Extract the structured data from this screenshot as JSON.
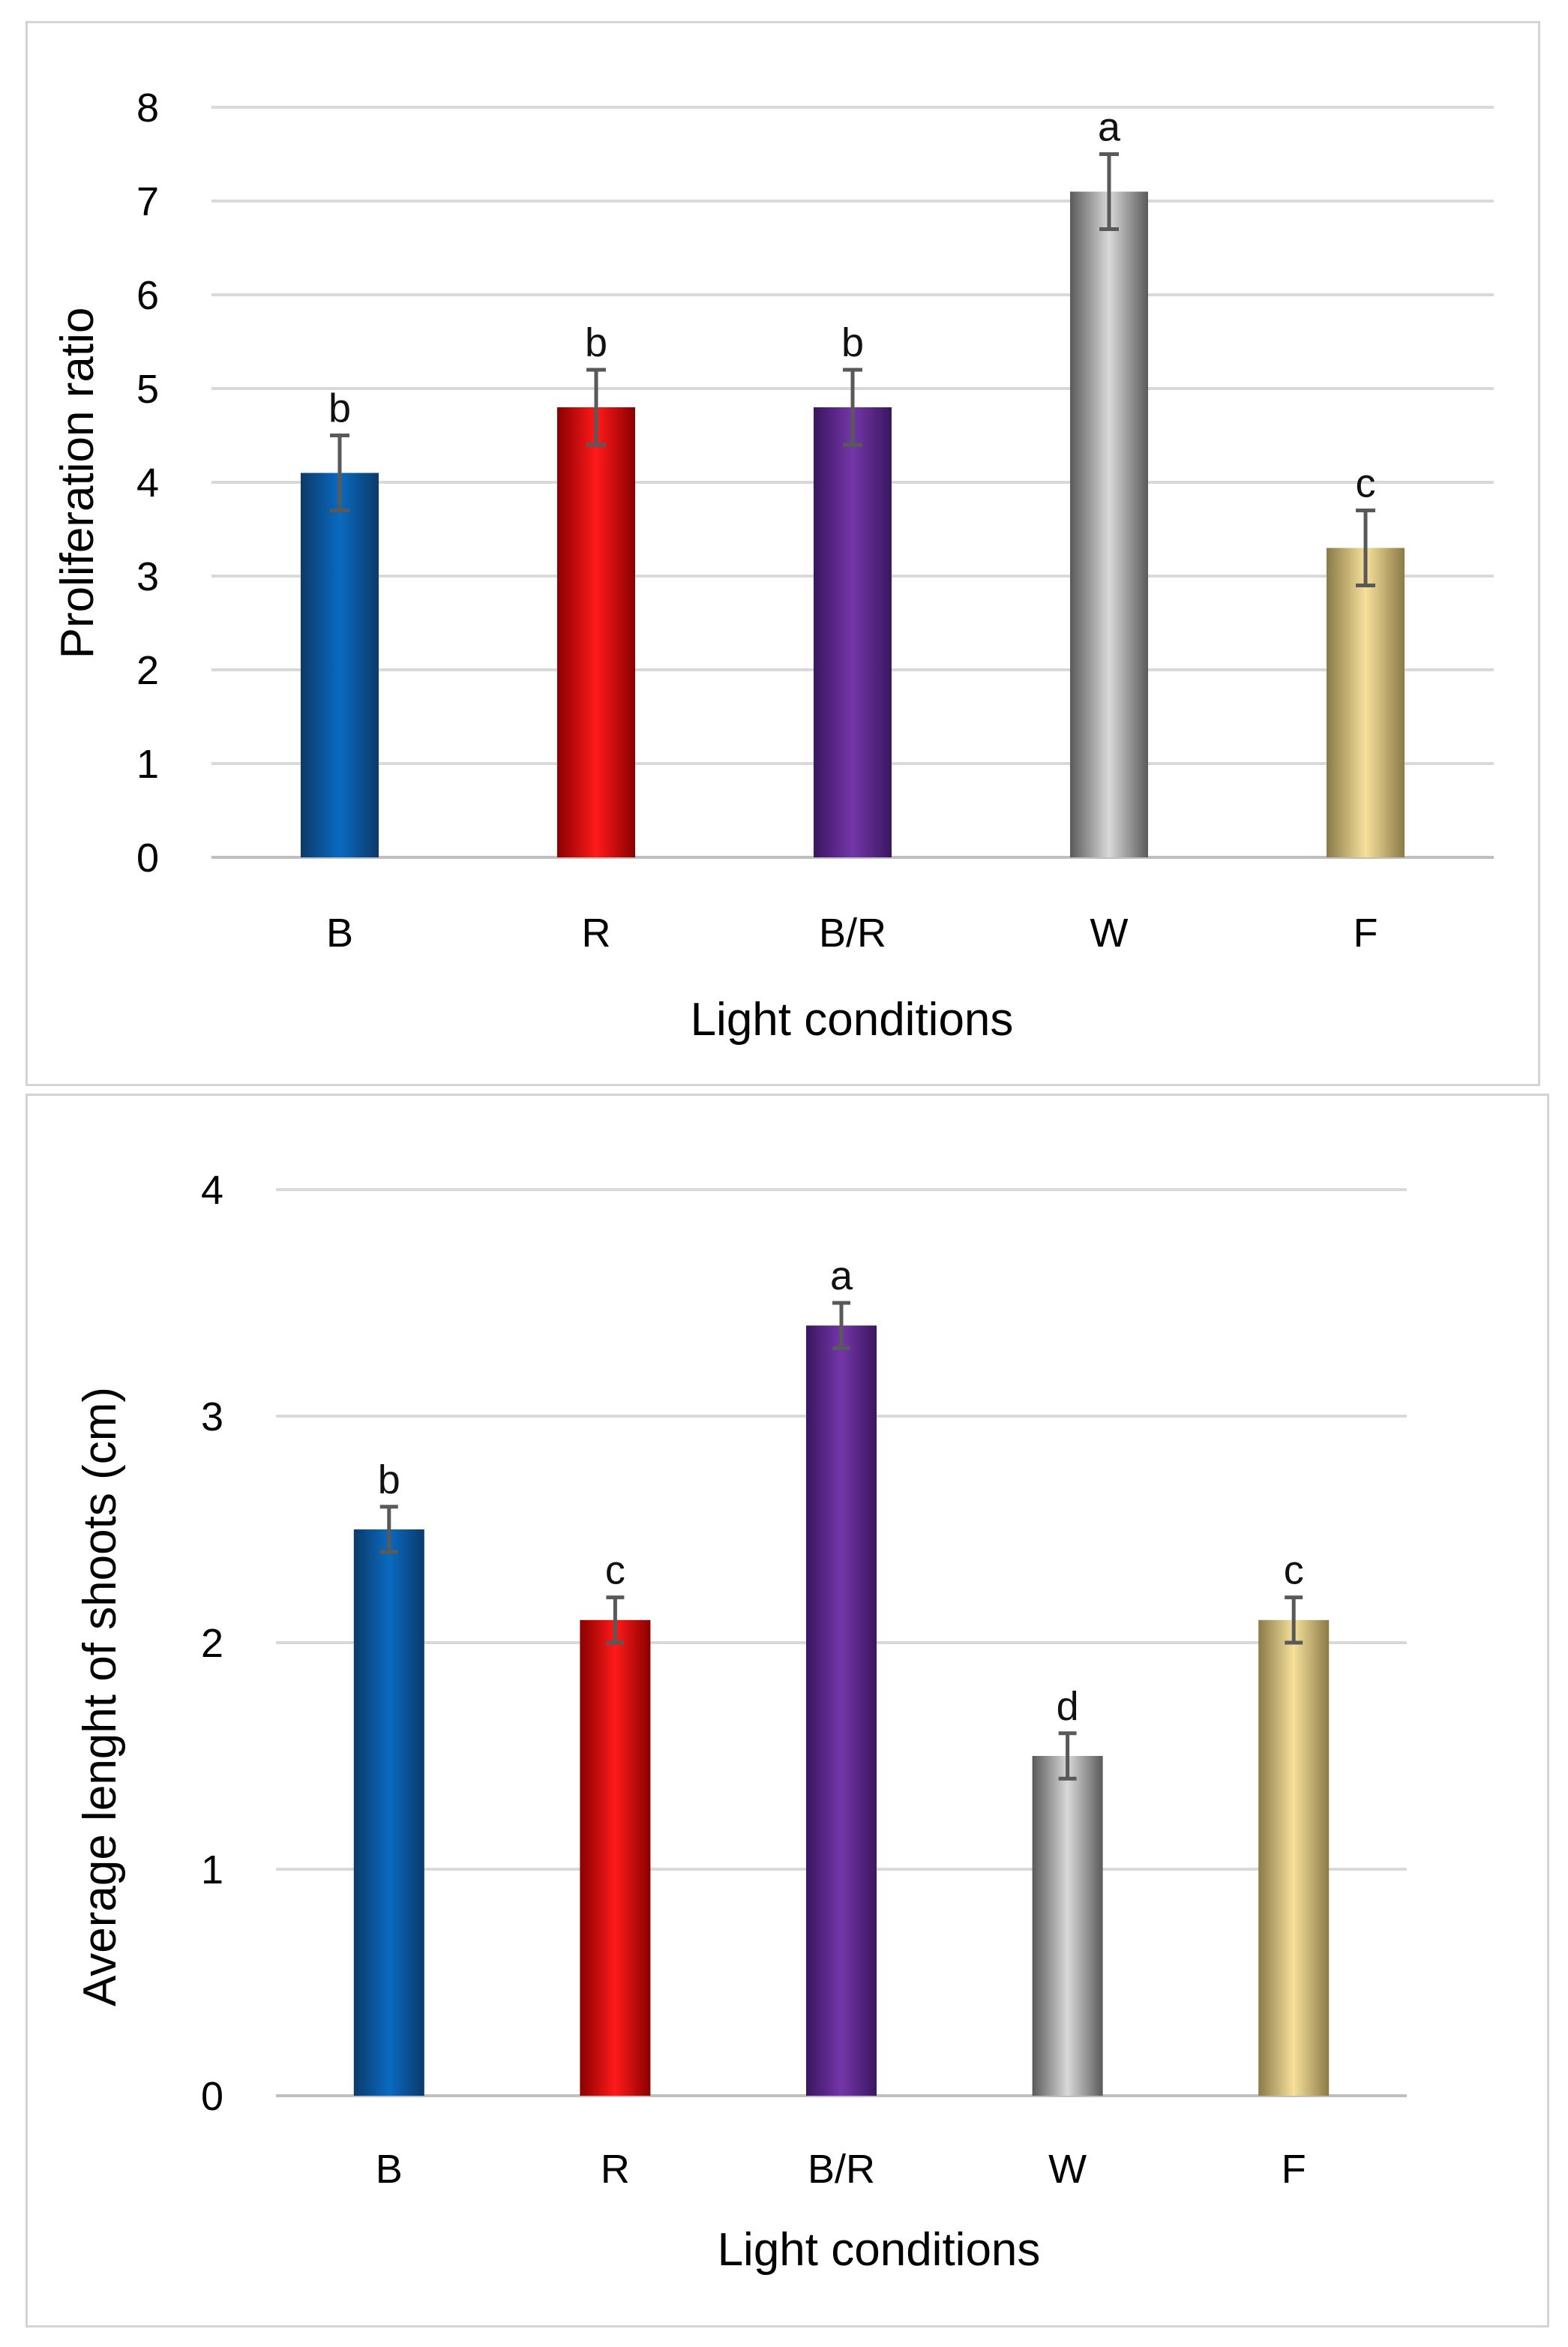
{
  "chart_data": [
    {
      "type": "bar",
      "title": "",
      "xlabel": "Light conditions",
      "ylabel": "Proliferation ratio",
      "categories": [
        "B",
        "R",
        "B/R",
        "W",
        "F"
      ],
      "values": [
        4.1,
        4.8,
        4.8,
        7.1,
        3.3
      ],
      "errors": [
        0.4,
        0.4,
        0.4,
        0.4,
        0.4
      ],
      "significance_letters": [
        "b",
        "b",
        "b",
        "a",
        "c"
      ],
      "bar_colors": [
        "#005aa0",
        "#e00000",
        "#68309a",
        "#a6a6a6",
        "#f0d890"
      ],
      "ylim": [
        0,
        8
      ],
      "yticks": [
        0,
        1,
        2,
        3,
        4,
        5,
        6,
        7,
        8
      ],
      "grid": true
    },
    {
      "type": "bar",
      "title": "",
      "xlabel": "Light conditions",
      "ylabel": "Average lenght of shoots (cm)",
      "categories": [
        "B",
        "R",
        "B/R",
        "W",
        "F"
      ],
      "values": [
        2.5,
        2.1,
        3.4,
        1.5,
        2.1
      ],
      "errors": [
        0.1,
        0.1,
        0.1,
        0.1,
        0.1
      ],
      "significance_letters": [
        "b",
        "c",
        "a",
        "d",
        "c"
      ],
      "bar_colors": [
        "#005aa0",
        "#e00000",
        "#5c2a8a",
        "#bdbdbd",
        "#e8d08a"
      ],
      "ylim": [
        0,
        4
      ],
      "yticks": [
        0,
        1,
        2,
        3,
        4
      ],
      "grid": true
    }
  ]
}
